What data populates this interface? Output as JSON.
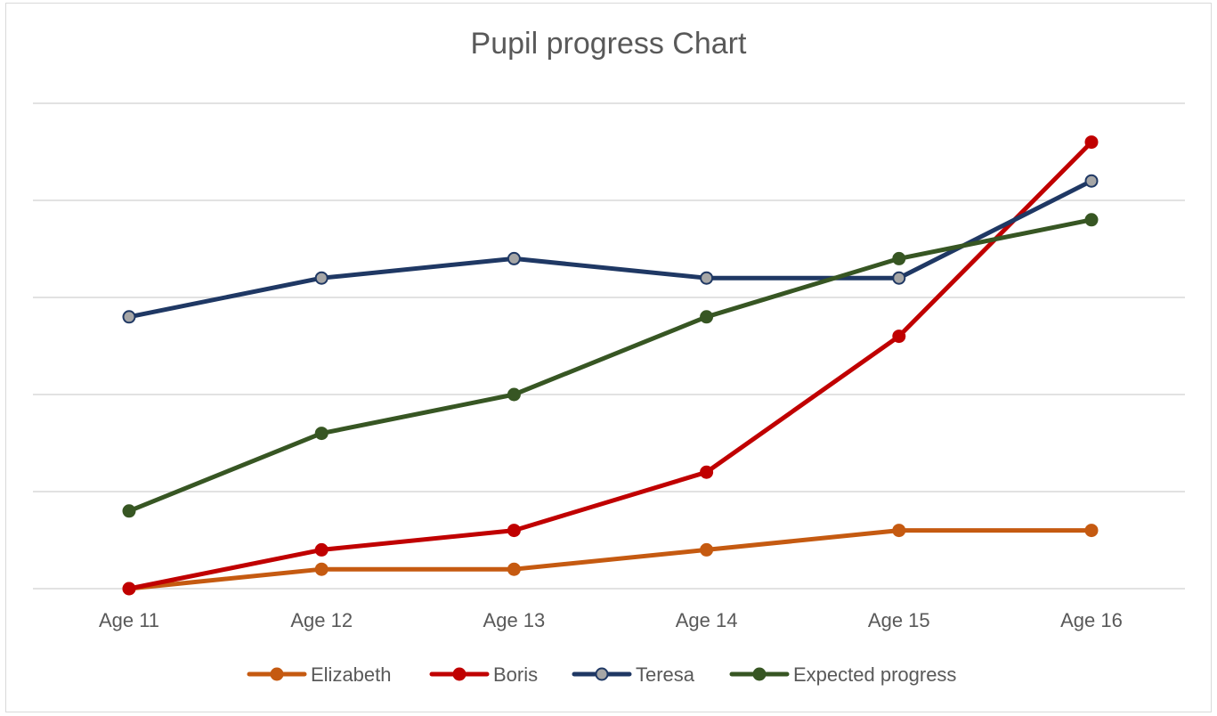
{
  "chart_data": {
    "type": "line",
    "title": "Pupil progress Chart",
    "xlabel": "",
    "ylabel": "",
    "categories": [
      "Age 11",
      "Age 12",
      "Age 13",
      "Age 14",
      "Age 15",
      "Age 16"
    ],
    "ylim": [
      0,
      25
    ],
    "gridlines": [
      0,
      5,
      10,
      15,
      20,
      25
    ],
    "grid": true,
    "y_tick_labels_visible": false,
    "legend_position": "bottom",
    "series": [
      {
        "name": "Elizabeth",
        "color": "#c55a11",
        "marker_fill": "#c55a11",
        "values": [
          0,
          1,
          1,
          2,
          3,
          3
        ]
      },
      {
        "name": "Boris",
        "color": "#c00000",
        "marker_fill": "#c00000",
        "values": [
          0,
          2,
          3,
          6,
          13,
          23
        ]
      },
      {
        "name": "Teresa",
        "color": "#1f3864",
        "marker_fill": "#a6a6a6",
        "values": [
          14,
          16,
          17,
          16,
          16,
          21
        ]
      },
      {
        "name": "Expected progress",
        "color": "#375623",
        "marker_fill": "#375623",
        "values": [
          4,
          8,
          10,
          14,
          17,
          19
        ]
      }
    ]
  }
}
